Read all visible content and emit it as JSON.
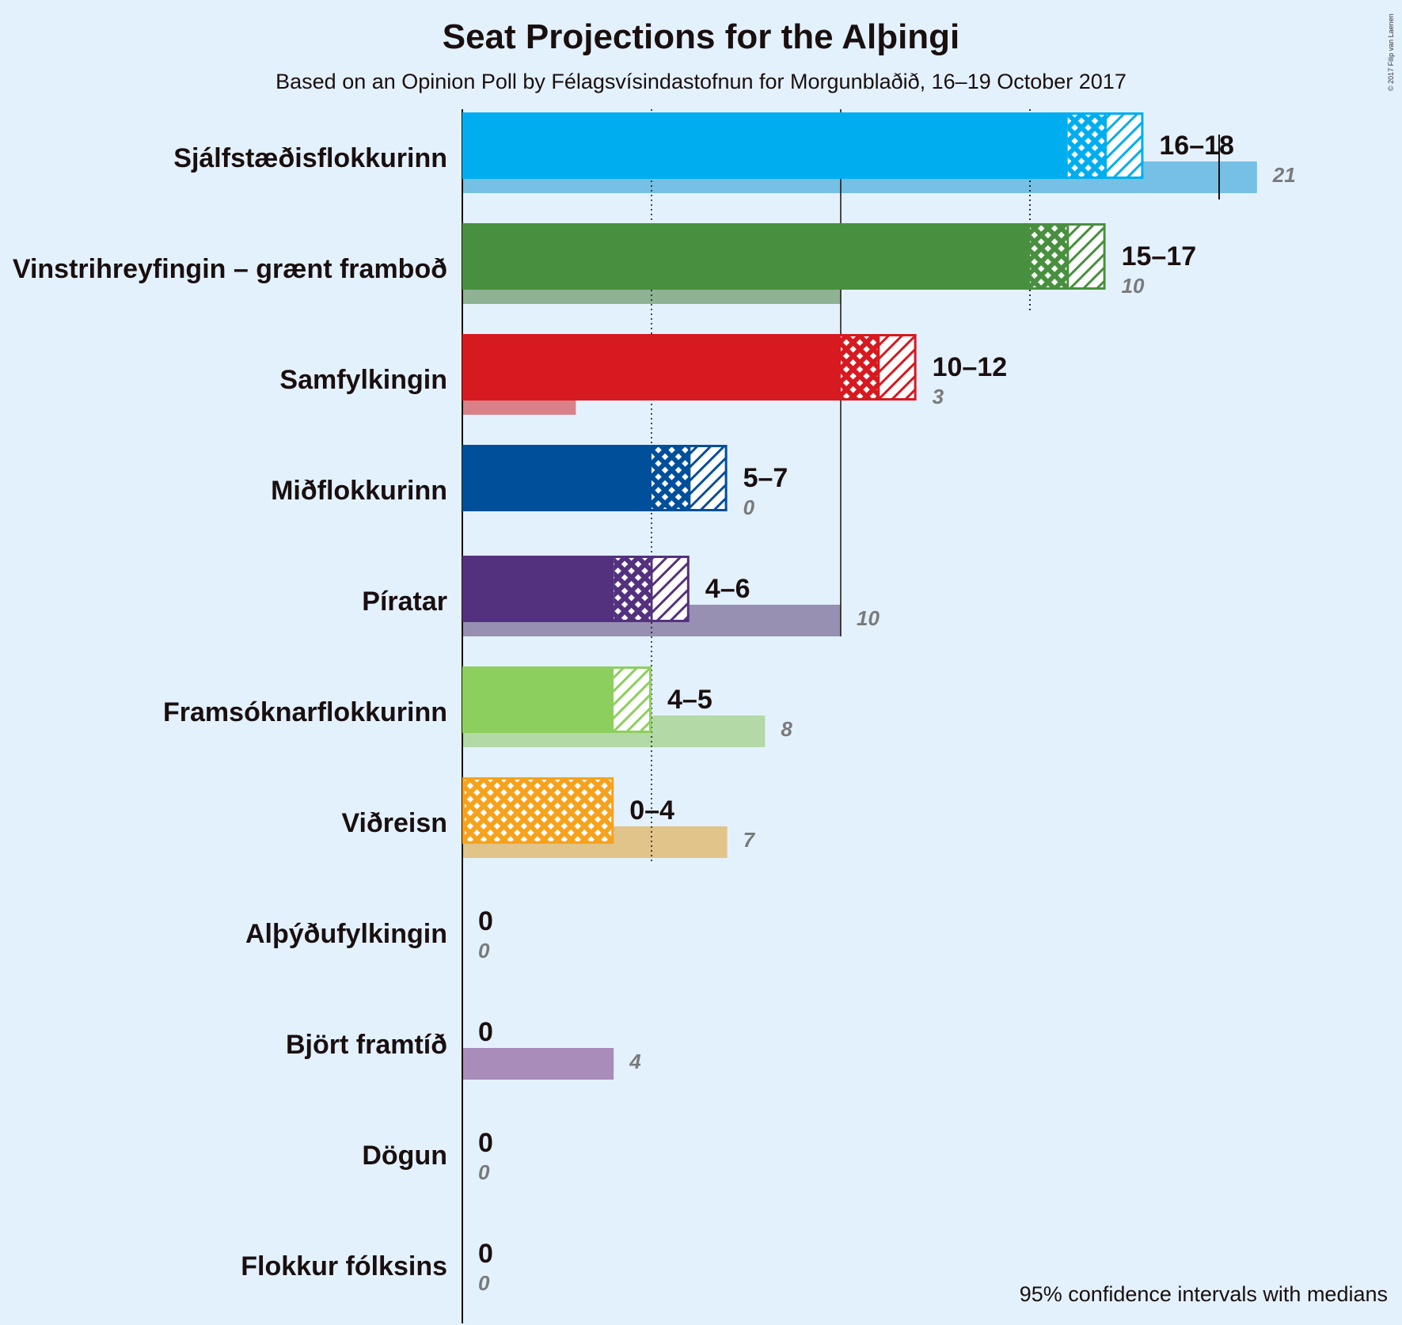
{
  "page": {
    "title": "Seat Projections for the Alþingi",
    "subtitle": "Based on an Opinion Poll by Félagsvísindastofnun for Morgunblaðið, 16–19 October 2017",
    "copyright": "© 2017 Filip van Laenen",
    "footnote": "95% confidence intervals with medians"
  },
  "chart_data": {
    "type": "bar",
    "orientation": "horizontal",
    "gridlines": [
      5,
      10,
      15,
      20
    ],
    "majority_marker": 20,
    "parties": [
      {
        "name": "Sjálfstæðisflokkurinn",
        "color": "#00aeef",
        "last_color": "#75c0e4",
        "low": 16,
        "median": 17,
        "high": 18,
        "range_label": "16–18",
        "last": 21,
        "last_label": "21"
      },
      {
        "name": "Vinstrihreyfingin – grænt framboð",
        "color": "#48903f",
        "last_color": "#8fb293",
        "low": 15,
        "median": 16,
        "high": 17,
        "range_label": "15–17",
        "last": 10,
        "last_label": "10"
      },
      {
        "name": "Samfylkingin",
        "color": "#d71920",
        "last_color": "#d98088",
        "low": 10,
        "median": 11,
        "high": 12,
        "range_label": "10–12",
        "last": 3,
        "last_label": "3"
      },
      {
        "name": "Miðflokkurinn",
        "color": "#004f9b",
        "last_color": "#004f9b",
        "low": 5,
        "median": 6,
        "high": 7,
        "range_label": "5–7",
        "last": 0,
        "last_label": "0"
      },
      {
        "name": "Píratar",
        "color": "#54317e",
        "last_color": "#9790b2",
        "low": 4,
        "median": 5,
        "high": 6,
        "range_label": "4–6",
        "last": 10,
        "last_label": "10"
      },
      {
        "name": "Framsóknarflokkurinn",
        "color": "#8dcf5f",
        "last_color": "#b3d9a6",
        "low": 4,
        "median": 4,
        "high": 5,
        "range_label": "4–5",
        "last": 8,
        "last_label": "8"
      },
      {
        "name": "Viðreisn",
        "color": "#f6a21d",
        "last_color": "#e0c48a",
        "low": 0,
        "median": 4,
        "high": 4,
        "range_label": "0–4",
        "last": 7,
        "last_label": "7"
      },
      {
        "name": "Alþýðufylkingin",
        "color": "#c0392b",
        "last_color": "#c0392b",
        "low": 0,
        "median": 0,
        "high": 0,
        "range_label": "0",
        "last": 0,
        "last_label": "0"
      },
      {
        "name": "Björt framtíð",
        "color": "#9b6fa8",
        "last_color": "#a98cb9",
        "low": 0,
        "median": 0,
        "high": 0,
        "range_label": "0",
        "last": 4,
        "last_label": "4"
      },
      {
        "name": "Dögun",
        "color": "#888888",
        "last_color": "#888888",
        "low": 0,
        "median": 0,
        "high": 0,
        "range_label": "0",
        "last": 0,
        "last_label": "0"
      },
      {
        "name": "Flokkur fólksins",
        "color": "#888888",
        "last_color": "#888888",
        "low": 0,
        "median": 0,
        "high": 0,
        "range_label": "0",
        "last": 0,
        "last_label": "0"
      }
    ]
  }
}
